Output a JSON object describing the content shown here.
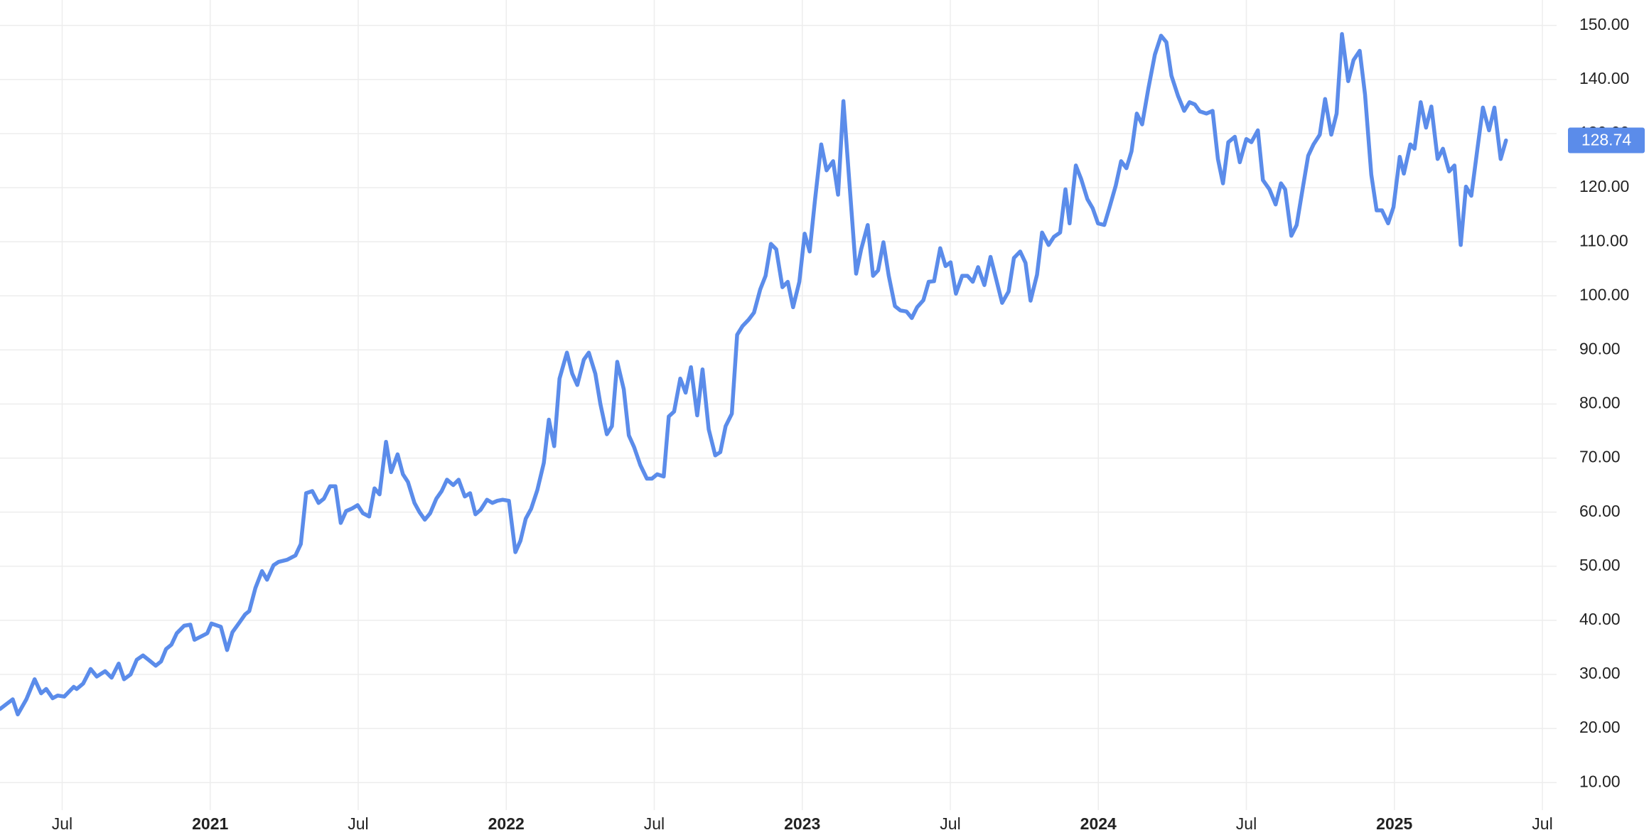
{
  "chart_data": {
    "type": "line",
    "color": "#5b8cea",
    "grid": true,
    "x": [
      2020.29,
      2020.333,
      2020.35,
      2020.379,
      2020.407,
      2020.429,
      2020.446,
      2020.468,
      2020.485,
      2020.507,
      2020.539,
      2020.549,
      2020.571,
      2020.596,
      2020.617,
      2020.645,
      2020.667,
      2020.691,
      2020.709,
      2020.731,
      2020.752,
      2020.773,
      2020.794,
      2020.816,
      2020.834,
      2020.851,
      2020.869,
      2020.887,
      2020.912,
      2020.933,
      2020.947,
      2020.976,
      2020.99,
      2021.004,
      2021.036,
      2021.057,
      2021.075,
      2021.1,
      2021.118,
      2021.132,
      2021.153,
      2021.175,
      2021.192,
      2021.214,
      2021.231,
      2021.26,
      2021.288,
      2021.306,
      2021.324,
      2021.345,
      2021.366,
      2021.384,
      2021.405,
      2021.423,
      2021.441,
      2021.459,
      2021.48,
      2021.498,
      2021.516,
      2021.537,
      2021.555,
      2021.572,
      2021.594,
      2021.611,
      2021.633,
      2021.651,
      2021.668,
      2021.69,
      2021.707,
      2021.725,
      2021.743,
      2021.764,
      2021.782,
      2021.8,
      2021.821,
      2021.839,
      2021.86,
      2021.878,
      2021.896,
      2021.913,
      2021.935,
      2021.953,
      2021.97,
      2021.988,
      2022.009,
      2022.031,
      2022.048,
      2022.066,
      2022.084,
      2022.105,
      2022.127,
      2022.144,
      2022.162,
      2022.18,
      2022.205,
      2022.223,
      2022.24,
      2022.262,
      2022.279,
      2022.301,
      2022.318,
      2022.34,
      2022.357,
      2022.375,
      2022.397,
      2022.414,
      2022.432,
      2022.453,
      2022.475,
      2022.492,
      2022.51,
      2022.532,
      2022.549,
      2022.567,
      2022.588,
      2022.606,
      2022.624,
      2022.645,
      2022.663,
      2022.684,
      2022.706,
      2022.723,
      2022.741,
      2022.762,
      2022.78,
      2022.798,
      2022.819,
      2022.837,
      2022.858,
      2022.876,
      2022.894,
      2022.912,
      2022.933,
      2022.951,
      2022.969,
      2022.99,
      2023.008,
      2023.025,
      2023.043,
      2023.064,
      2023.082,
      2023.104,
      2023.121,
      2023.139,
      2023.157,
      2023.182,
      2023.199,
      2023.221,
      2023.239,
      2023.256,
      2023.274,
      2023.292,
      2023.313,
      2023.331,
      2023.352,
      2023.37,
      2023.388,
      2023.409,
      2023.427,
      2023.445,
      2023.466,
      2023.484,
      2023.501,
      2023.519,
      2023.54,
      2023.558,
      2023.576,
      2023.594,
      2023.615,
      2023.636,
      2023.654,
      2023.675,
      2023.697,
      2023.715,
      2023.736,
      2023.754,
      2023.771,
      2023.793,
      2023.81,
      2023.832,
      2023.85,
      2023.871,
      2023.889,
      2023.903,
      2023.924,
      2023.942,
      2023.963,
      2023.981,
      2023.999,
      2024.02,
      2024.038,
      2024.059,
      2024.077,
      2024.095,
      2024.112,
      2024.13,
      2024.148,
      2024.169,
      2024.191,
      2024.212,
      2024.23,
      2024.247,
      2024.269,
      2024.29,
      2024.308,
      2024.326,
      2024.343,
      2024.365,
      2024.386,
      2024.404,
      2024.421,
      2024.439,
      2024.461,
      2024.478,
      2024.5,
      2024.517,
      2024.539,
      2024.556,
      2024.578,
      2024.599,
      2024.617,
      2024.631,
      2024.652,
      2024.67,
      2024.691,
      2024.709,
      2024.727,
      2024.748,
      2024.766,
      2024.787,
      2024.805,
      2024.823,
      2024.844,
      2024.862,
      2024.883,
      2024.901,
      2024.922,
      2024.94,
      2024.958,
      2024.979,
      2024.997,
      2025.018,
      2025.032,
      2025.054,
      2025.068,
      2025.089,
      2025.107,
      2025.125,
      2025.146,
      2025.164,
      2025.185,
      2025.203,
      2025.224,
      2025.242,
      2025.26,
      2025.281,
      2025.299,
      2025.32,
      2025.338,
      2025.359,
      2025.377
    ],
    "values": [
      23.6,
      25.4,
      22.6,
      25.4,
      29.1,
      26.5,
      27.3,
      25.6,
      26.1,
      25.9,
      27.7,
      27.3,
      28.3,
      31.0,
      29.6,
      30.6,
      29.4,
      32.0,
      29.1,
      30.0,
      32.7,
      33.5,
      32.6,
      31.6,
      32.4,
      34.7,
      35.5,
      37.6,
      39.0,
      39.2,
      36.4,
      37.2,
      37.6,
      39.4,
      38.8,
      34.5,
      37.8,
      39.7,
      41.1,
      41.7,
      46.0,
      49.1,
      47.5,
      50.2,
      50.8,
      51.2,
      52.0,
      54.1,
      63.5,
      63.9,
      61.7,
      62.5,
      64.8,
      64.8,
      58.0,
      60.2,
      60.7,
      61.3,
      59.8,
      59.2,
      64.4,
      63.3,
      73.0,
      67.4,
      70.7,
      67.0,
      65.6,
      61.7,
      60.0,
      58.6,
      59.8,
      62.5,
      63.9,
      66.0,
      65.0,
      66.0,
      62.9,
      63.5,
      59.6,
      60.4,
      62.3,
      61.7,
      62.1,
      62.3,
      62.1,
      52.6,
      54.7,
      58.8,
      60.6,
      64.1,
      69.1,
      77.1,
      72.2,
      84.7,
      89.5,
      85.6,
      83.5,
      88.2,
      89.5,
      85.6,
      80.0,
      74.4,
      75.9,
      87.8,
      82.7,
      74.2,
      72.0,
      68.7,
      66.2,
      66.2,
      67.0,
      66.6,
      77.7,
      78.6,
      84.7,
      82.1,
      86.8,
      77.9,
      86.4,
      75.3,
      70.5,
      71.1,
      75.9,
      78.2,
      92.8,
      94.4,
      95.6,
      96.9,
      101.2,
      103.7,
      109.6,
      108.6,
      101.6,
      102.6,
      97.9,
      102.6,
      111.5,
      108.2,
      117.7,
      128.0,
      123.2,
      124.9,
      118.7,
      136.0,
      122.6,
      104.1,
      108.6,
      113.1,
      103.7,
      104.7,
      109.9,
      103.7,
      98.1,
      97.3,
      97.1,
      95.9,
      97.9,
      99.2,
      102.6,
      102.7,
      108.8,
      105.5,
      106.2,
      100.4,
      103.7,
      103.7,
      102.6,
      105.3,
      102.0,
      107.2,
      103.3,
      98.7,
      100.8,
      107.0,
      108.2,
      106.1,
      99.1,
      103.9,
      111.7,
      109.4,
      110.9,
      111.7,
      119.7,
      113.4,
      124.1,
      121.6,
      117.9,
      116.2,
      113.4,
      113.1,
      116.4,
      120.4,
      124.9,
      123.6,
      126.7,
      133.7,
      131.7,
      138.3,
      144.6,
      148.1,
      146.9,
      140.7,
      137.0,
      134.2,
      135.8,
      135.4,
      134.1,
      133.7,
      134.2,
      125.3,
      120.8,
      128.4,
      129.4,
      124.7,
      129.0,
      128.4,
      130.6,
      121.4,
      119.7,
      116.9,
      120.8,
      119.7,
      111.1,
      113.1,
      120.1,
      125.9,
      128.0,
      129.8,
      136.4,
      129.8,
      133.7,
      148.4,
      139.7,
      143.6,
      145.3,
      137.2,
      122.4,
      115.8,
      115.8,
      113.4,
      116.4,
      125.7,
      122.6,
      128.0,
      127.2,
      135.8,
      131.1,
      135.0,
      125.3,
      127.2,
      123.0,
      124.1,
      109.4,
      120.2,
      118.5,
      127.4,
      134.8,
      130.6,
      134.8,
      125.3,
      128.74
    ],
    "xlim": [
      2020.29,
      2025.548
    ],
    "xticks": [
      {
        "value": 2020.5,
        "label": "Jul"
      },
      2021,
      {
        "value": 2021.5,
        "label": "Jul"
      },
      2022,
      {
        "value": 2022.5,
        "label": "Jul"
      },
      2023,
      {
        "value": 2023.5,
        "label": "Jul"
      },
      2024,
      {
        "value": 2024.5,
        "label": "Jul"
      },
      2025,
      {
        "value": 2025.5,
        "label": "Jul"
      }
    ],
    "ylim": [
      4.9,
      154.7
    ],
    "yticks": [
      {
        "value": 10,
        "label": "10.00"
      },
      {
        "value": 20,
        "label": "20.00"
      },
      {
        "value": 30,
        "label": "30.00"
      },
      {
        "value": 40,
        "label": "40.00"
      },
      {
        "value": 50,
        "label": "50.00"
      },
      {
        "value": 60,
        "label": "60.00"
      },
      {
        "value": 70,
        "label": "70.00"
      },
      {
        "value": 80,
        "label": "80.00"
      },
      {
        "value": 90,
        "label": "90.00"
      },
      {
        "value": 100,
        "label": "100.00"
      },
      {
        "value": 110,
        "label": "110.00"
      },
      {
        "value": 120,
        "label": "120.00"
      },
      {
        "value": 130,
        "label": "130.00"
      },
      {
        "value": 140,
        "label": "140.00"
      },
      {
        "value": 150,
        "label": "150.00"
      }
    ]
  }
}
